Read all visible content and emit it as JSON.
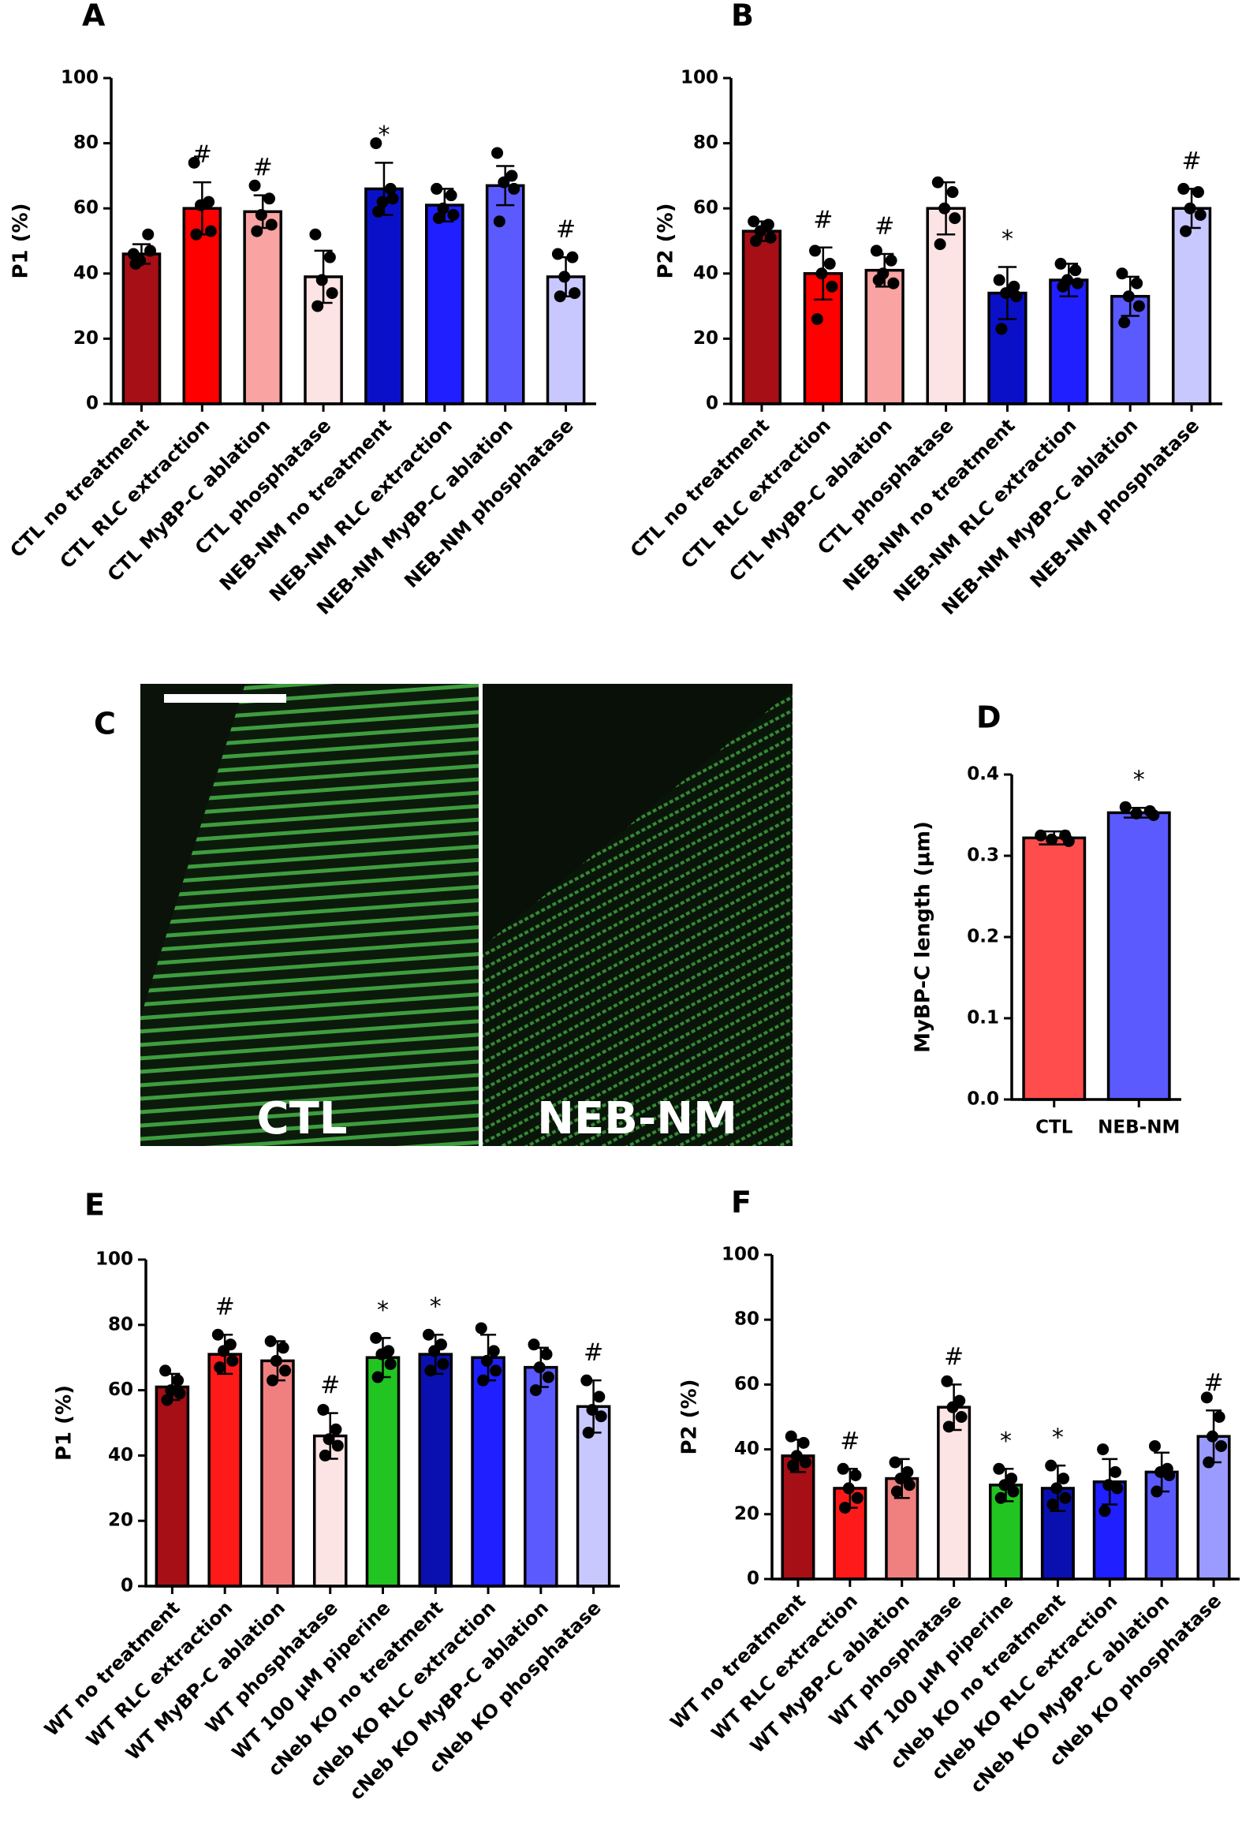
{
  "chart_data": [
    {
      "type": "bar",
      "panel": "A",
      "ylabel": "P1 (%)",
      "categories": [
        "CTL no treatment",
        "CTL RLC extraction",
        "CTL MyBP-C ablation",
        "CTL phosphatase",
        "NEB-NM no treatment",
        "NEB-NM RLC extraction",
        "NEB-NM MyBP-C ablation",
        "NEB-NM phosphatase"
      ],
      "values": [
        46,
        60,
        59,
        39,
        66,
        61,
        67,
        39
      ],
      "errors": [
        3,
        8,
        5,
        8,
        8,
        5,
        6,
        6
      ],
      "annotations": [
        null,
        "#",
        "#",
        null,
        "*",
        null,
        null,
        "#"
      ],
      "colors": [
        "#a50f15",
        "#ff0000",
        "#f9a3a3",
        "#fde4e4",
        "#0a10c8",
        "#1f1fff",
        "#5a5aff",
        "#c8c8ff"
      ],
      "points": [
        [
          46,
          52,
          44,
          47,
          43
        ],
        [
          74,
          62,
          61,
          53,
          52
        ],
        [
          67,
          63,
          58,
          55,
          53
        ],
        [
          52,
          45,
          38,
          34,
          30
        ],
        [
          80,
          66,
          62,
          63,
          59
        ],
        [
          66,
          64,
          60,
          58,
          57
        ],
        [
          77,
          70,
          68,
          66,
          56
        ],
        [
          46,
          45,
          39,
          34,
          33
        ]
      ],
      "ylim": [
        0,
        100
      ],
      "yticks": [
        0,
        20,
        40,
        60,
        80,
        100
      ]
    },
    {
      "type": "bar",
      "panel": "B",
      "ylabel": "P2 (%)",
      "categories": [
        "CTL no treatment",
        "CTL RLC extraction",
        "CTL MyBP-C ablation",
        "CTL phosphatase",
        "NEB-NM no treatment",
        "NEB-NM RLC extraction",
        "NEB-NM MyBP-C ablation",
        "NEB-NM phosphatase"
      ],
      "values": [
        53,
        40,
        41,
        60,
        34,
        38,
        33,
        60
      ],
      "errors": [
        3,
        8,
        5,
        8,
        8,
        5,
        6,
        6
      ],
      "annotations": [
        null,
        "#",
        "#",
        null,
        "*",
        null,
        null,
        "#"
      ],
      "colors": [
        "#a50f15",
        "#ff0000",
        "#f9a3a3",
        "#fde4e4",
        "#0a10c8",
        "#1f1fff",
        "#5a5aff",
        "#c8c8ff"
      ],
      "points": [
        [
          56,
          55,
          53,
          51,
          50
        ],
        [
          47,
          43,
          40,
          36,
          26
        ],
        [
          47,
          44,
          40,
          37,
          38
        ],
        [
          68,
          65,
          60,
          57,
          49
        ],
        [
          38,
          36,
          34,
          33,
          23
        ],
        [
          43,
          41,
          38,
          37,
          36
        ],
        [
          40,
          37,
          33,
          30,
          25
        ],
        [
          66,
          65,
          60,
          58,
          53
        ]
      ],
      "ylim": [
        0,
        100
      ],
      "yticks": [
        0,
        20,
        40,
        60,
        80,
        100
      ]
    },
    {
      "type": "bar",
      "panel": "D",
      "ylabel": "MyBP-C length (µm)",
      "categories": [
        "CTL",
        "NEB-NM"
      ],
      "values": [
        0.322,
        0.353
      ],
      "errors": [
        0.008,
        0.006
      ],
      "annotations": [
        null,
        "*"
      ],
      "colors": [
        "#ff4d4d",
        "#5a5aff"
      ],
      "points": [
        [
          0.325,
          0.325,
          0.32,
          0.318
        ],
        [
          0.36,
          0.355,
          0.352,
          0.35
        ]
      ],
      "ylim": [
        0,
        0.4
      ],
      "yticks": [
        {
          "value": 0,
          "label": "0.0"
        },
        0.1,
        0.2,
        0.3,
        0.4
      ]
    },
    {
      "type": "bar",
      "panel": "E",
      "ylabel": "P1 (%)",
      "categories": [
        "WT no treatment",
        "WT RLC extraction",
        "WT MyBP-C ablation",
        "WT phosphatase",
        "WT 100 µM piperine",
        "cNeb KO no treatment",
        "cNeb KO RLC extraction",
        "cNeb KO MyBP-C ablation",
        "cNeb KO phosphatase"
      ],
      "values": [
        61,
        71,
        69,
        46,
        70,
        71,
        70,
        67,
        55
      ],
      "errors": [
        4,
        6,
        6,
        7,
        6,
        6,
        7,
        6,
        8
      ],
      "annotations": [
        null,
        "#",
        null,
        "#",
        "*",
        "*",
        null,
        null,
        "#"
      ],
      "colors": [
        "#a50f15",
        "#ff1a1a",
        "#f08080",
        "#fde4e4",
        "#22c422",
        "#0a10b0",
        "#1f1fff",
        "#5a5aff",
        "#c8c8ff"
      ],
      "points": [
        [
          66,
          63,
          60,
          59,
          57
        ],
        [
          77,
          74,
          72,
          69,
          67
        ],
        [
          75,
          73,
          69,
          66,
          63
        ],
        [
          54,
          48,
          45,
          43,
          40
        ],
        [
          76,
          72,
          71,
          68,
          64
        ],
        [
          77,
          74,
          72,
          68,
          66
        ],
        [
          79,
          72,
          69,
          66,
          63
        ],
        [
          74,
          71,
          67,
          64,
          60
        ],
        [
          63,
          58,
          54,
          52,
          47
        ]
      ],
      "ylim": [
        0,
        100
      ],
      "yticks": [
        0,
        20,
        40,
        60,
        80,
        100
      ]
    },
    {
      "type": "bar",
      "panel": "F",
      "ylabel": "P2 (%)",
      "categories": [
        "WT no treatment",
        "WT RLC extraction",
        "WT MyBP-C ablation",
        "WT phosphatase",
        "WT 100 µM piperine",
        "cNeb KO no treatment",
        "cNeb KO RLC extraction",
        "cNeb KO MyBP-C ablation",
        "cNeb KO phosphatase"
      ],
      "values": [
        38,
        28,
        31,
        53,
        29,
        28,
        30,
        33,
        44
      ],
      "errors": [
        5,
        6,
        6,
        7,
        5,
        7,
        7,
        6,
        8
      ],
      "annotations": [
        null,
        "#",
        null,
        "#",
        "*",
        "*",
        null,
        null,
        "#"
      ],
      "colors": [
        "#a50f15",
        "#ff1a1a",
        "#f08080",
        "#fde4e4",
        "#22c422",
        "#0a10b0",
        "#1f1fff",
        "#5a5aff",
        "#9a9aff"
      ],
      "points": [
        [
          44,
          42,
          38,
          36,
          35
        ],
        [
          34,
          32,
          28,
          25,
          22
        ],
        [
          36,
          33,
          31,
          29,
          27
        ],
        [
          61,
          55,
          53,
          50,
          47
        ],
        [
          34,
          31,
          29,
          27,
          25
        ],
        [
          35,
          31,
          28,
          25,
          23
        ],
        [
          40,
          33,
          29,
          28,
          21
        ],
        [
          41,
          34,
          33,
          32,
          27
        ],
        [
          56,
          50,
          44,
          41,
          36
        ]
      ],
      "ylim": [
        0,
        100
      ],
      "yticks": [
        0,
        20,
        40,
        60,
        80,
        100
      ]
    }
  ],
  "micrograph": {
    "panel": "C",
    "labels": [
      "CTL",
      "NEB-NM"
    ]
  }
}
